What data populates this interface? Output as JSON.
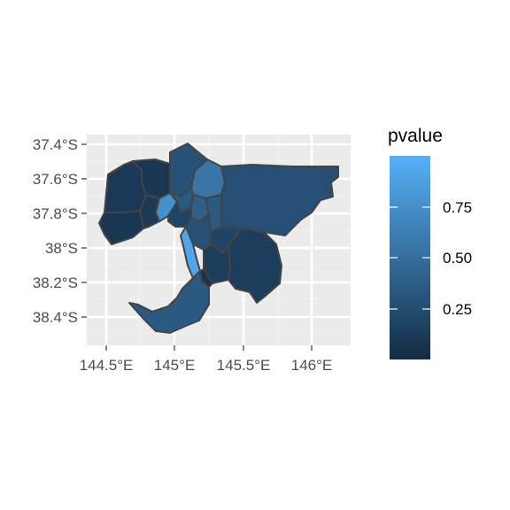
{
  "chart_data": {
    "type": "choropleth",
    "title": "",
    "xlabel": "",
    "ylabel": "",
    "x_ticks": [
      "144.5°E",
      "145°E",
      "145.5°E",
      "146°E"
    ],
    "y_ticks": [
      "37.4°S",
      "37.6°S",
      "37.8°S",
      "38°S",
      "38.2°S",
      "38.4°S"
    ],
    "xlim": [
      144.37,
      146.27
    ],
    "ylim": [
      -38.56,
      -37.34
    ],
    "grid": true,
    "legend": {
      "title": "pvalue",
      "position": "right",
      "breaks": [
        "0.25",
        "0.50",
        "0.75"
      ],
      "range": [
        0.02,
        0.98
      ],
      "color_low": "#132B43",
      "color_high": "#56B1F7"
    },
    "regions": [
      {
        "id": "west-north",
        "value": 0.12
      },
      {
        "id": "north-west-central",
        "value": 0.1
      },
      {
        "id": "north-central",
        "value": 0.3
      },
      {
        "id": "north-east",
        "value": 0.55
      },
      {
        "id": "east-yarra",
        "value": 0.28
      },
      {
        "id": "far-west",
        "value": 0.1
      },
      {
        "id": "west-central",
        "value": 0.13
      },
      {
        "id": "inner-north-west",
        "value": 0.75
      },
      {
        "id": "inner-north",
        "value": 0.35
      },
      {
        "id": "inner-north-east",
        "value": 0.4
      },
      {
        "id": "inner-east",
        "value": 0.35
      },
      {
        "id": "inner-city",
        "value": 0.2
      },
      {
        "id": "inner-south",
        "value": 0.3
      },
      {
        "id": "bayside",
        "value": 0.9
      },
      {
        "id": "south-east-mid",
        "value": 0.2
      },
      {
        "id": "south-east-outer",
        "value": 0.15
      },
      {
        "id": "casey",
        "value": 0.08
      },
      {
        "id": "cardinia",
        "value": 0.15
      },
      {
        "id": "peninsula",
        "value": 0.35
      }
    ]
  }
}
